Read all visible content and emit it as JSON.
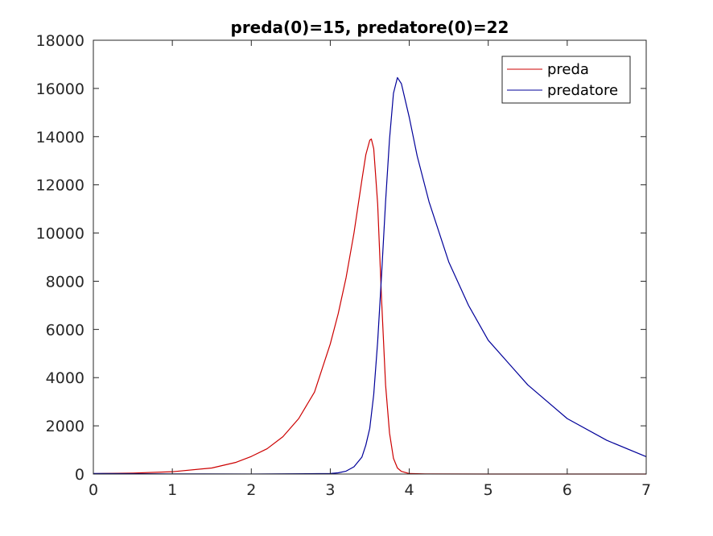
{
  "chart_data": {
    "type": "line",
    "title": "preda(0)=15, predatore(0)=22",
    "xlabel": "",
    "ylabel": "",
    "xlim": [
      0,
      7
    ],
    "ylim": [
      0,
      18000
    ],
    "x_ticks": [
      0,
      1,
      2,
      3,
      4,
      5,
      6,
      7
    ],
    "y_ticks": [
      0,
      2000,
      4000,
      6000,
      8000,
      10000,
      12000,
      14000,
      16000,
      18000
    ],
    "grid": false,
    "legend_position": "top-right",
    "series": [
      {
        "name": "preda",
        "color": "#cc0000",
        "points": [
          [
            0,
            15
          ],
          [
            0.5,
            40
          ],
          [
            1,
            95
          ],
          [
            1.5,
            250
          ],
          [
            1.8,
            480
          ],
          [
            2,
            730
          ],
          [
            2.2,
            1050
          ],
          [
            2.4,
            1550
          ],
          [
            2.6,
            2300
          ],
          [
            2.8,
            3400
          ],
          [
            3,
            5400
          ],
          [
            3.1,
            6650
          ],
          [
            3.2,
            8150
          ],
          [
            3.3,
            10000
          ],
          [
            3.4,
            12200
          ],
          [
            3.45,
            13250
          ],
          [
            3.5,
            13850
          ],
          [
            3.52,
            13900
          ],
          [
            3.55,
            13500
          ],
          [
            3.6,
            11200
          ],
          [
            3.65,
            7200
          ],
          [
            3.7,
            3700
          ],
          [
            3.75,
            1700
          ],
          [
            3.8,
            650
          ],
          [
            3.85,
            250
          ],
          [
            3.9,
            110
          ],
          [
            4,
            20
          ],
          [
            4.2,
            5
          ],
          [
            5,
            0
          ],
          [
            6,
            0
          ],
          [
            7,
            0
          ]
        ]
      },
      {
        "name": "predatore",
        "color": "#000099",
        "points": [
          [
            0,
            22
          ],
          [
            1,
            5
          ],
          [
            2,
            2
          ],
          [
            3,
            20
          ],
          [
            3.1,
            50
          ],
          [
            3.2,
            120
          ],
          [
            3.3,
            300
          ],
          [
            3.4,
            700
          ],
          [
            3.45,
            1200
          ],
          [
            3.5,
            1900
          ],
          [
            3.55,
            3300
          ],
          [
            3.6,
            5500
          ],
          [
            3.65,
            8300
          ],
          [
            3.7,
            11300
          ],
          [
            3.75,
            13900
          ],
          [
            3.8,
            15800
          ],
          [
            3.85,
            16450
          ],
          [
            3.9,
            16200
          ],
          [
            4,
            14800
          ],
          [
            4.1,
            13200
          ],
          [
            4.25,
            11300
          ],
          [
            4.5,
            8800
          ],
          [
            4.75,
            7000
          ],
          [
            5,
            5550
          ],
          [
            5.5,
            3700
          ],
          [
            6,
            2300
          ],
          [
            6.5,
            1400
          ],
          [
            7,
            720
          ]
        ]
      }
    ]
  }
}
